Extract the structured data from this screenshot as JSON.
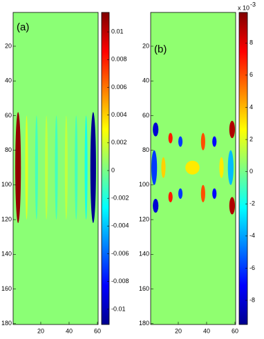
{
  "chart_data": [
    {
      "type": "heatmap",
      "label": "(a)",
      "y_reversed": true,
      "xlim": [
        0.5,
        60.5
      ],
      "ylim": [
        0.5,
        180.5
      ],
      "xticks": [
        20,
        40,
        60
      ],
      "yticks": [
        20,
        40,
        60,
        80,
        100,
        120,
        140,
        160,
        180
      ],
      "clim": [
        -0.0111,
        0.0114
      ],
      "cticks": [
        0.01,
        0.008,
        0.006,
        0.004,
        0.002,
        0,
        -0.002,
        -0.004,
        -0.006,
        -0.008,
        -0.01
      ],
      "colormap": [
        "#00008f",
        "#0000ff",
        "#0080ff",
        "#00ffff",
        "#80ff80",
        "#ffff00",
        "#ff8000",
        "#ff0000",
        "#800000"
      ],
      "background_value": 0.0004,
      "regions": [
        {
          "x": [
            2,
            6
          ],
          "y": [
            58,
            122
          ],
          "value": 0.011
        },
        {
          "x": [
            55,
            59
          ],
          "y": [
            58,
            122
          ],
          "value": -0.011
        },
        {
          "x": [
            9,
            11
          ],
          "y": [
            60,
            120
          ],
          "value": 0.0022
        },
        {
          "x": [
            16,
            18
          ],
          "y": [
            60,
            120
          ],
          "value": -0.0012
        },
        {
          "x": [
            23,
            25
          ],
          "y": [
            60,
            120
          ],
          "value": 0.0016
        },
        {
          "x": [
            30,
            32
          ],
          "y": [
            60,
            120
          ],
          "value": -0.0012
        },
        {
          "x": [
            37,
            39
          ],
          "y": [
            60,
            120
          ],
          "value": 0.0016
        },
        {
          "x": [
            44,
            46
          ],
          "y": [
            60,
            120
          ],
          "value": -0.0012
        },
        {
          "x": [
            51,
            53
          ],
          "y": [
            60,
            120
          ],
          "value": -0.0022
        }
      ]
    },
    {
      "type": "heatmap",
      "label": "(b)",
      "y_reversed": true,
      "xlim": [
        0.5,
        60.5
      ],
      "ylim": [
        0.5,
        180.5
      ],
      "xticks": [
        20,
        40,
        60
      ],
      "yticks": [
        20,
        40,
        60,
        80,
        100,
        120,
        140,
        160,
        180
      ],
      "clim": [
        -9.5,
        9.9
      ],
      "cticks": [
        8,
        6,
        4,
        2,
        0,
        -2,
        -4,
        -6,
        -8
      ],
      "colorbar_exponent_base": "x 10",
      "colorbar_exponent": "-3",
      "colormap": [
        "#00008f",
        "#0000ff",
        "#0080ff",
        "#00ffff",
        "#80ff80",
        "#ffff00",
        "#ff8000",
        "#ff0000",
        "#800000"
      ],
      "background_value": 0.5,
      "regions": [
        {
          "x": [
            56,
            60
          ],
          "y": [
            63,
            73
          ],
          "value": 9
        },
        {
          "x": [
            56,
            60
          ],
          "y": [
            107,
            117
          ],
          "value": 9
        },
        {
          "x": [
            2,
            6
          ],
          "y": [
            64,
            72
          ],
          "value": -8
        },
        {
          "x": [
            2,
            6
          ],
          "y": [
            108,
            116
          ],
          "value": -8
        },
        {
          "x": [
            1,
            5
          ],
          "y": [
            80,
            100
          ],
          "value": -6
        },
        {
          "x": [
            55,
            59
          ],
          "y": [
            80,
            100
          ],
          "value": -3.5
        },
        {
          "x": [
            13,
            16
          ],
          "y": [
            70,
            76
          ],
          "value": 7
        },
        {
          "x": [
            13,
            16
          ],
          "y": [
            104,
            110
          ],
          "value": 7
        },
        {
          "x": [
            20,
            23
          ],
          "y": [
            72,
            78
          ],
          "value": -6
        },
        {
          "x": [
            20,
            23
          ],
          "y": [
            102,
            108
          ],
          "value": -6
        },
        {
          "x": [
            36,
            39
          ],
          "y": [
            70,
            80
          ],
          "value": 6
        },
        {
          "x": [
            36,
            39
          ],
          "y": [
            100,
            110
          ],
          "value": 6
        },
        {
          "x": [
            44,
            47
          ],
          "y": [
            72,
            78
          ],
          "value": -7
        },
        {
          "x": [
            44,
            47
          ],
          "y": [
            102,
            108
          ],
          "value": -7
        },
        {
          "x": [
            25,
            35
          ],
          "y": [
            86,
            94
          ],
          "value": 3
        },
        {
          "x": [
            8,
            11
          ],
          "y": [
            84,
            96
          ],
          "value": 3.5
        },
        {
          "x": [
            49,
            52
          ],
          "y": [
            84,
            96
          ],
          "value": 3
        }
      ]
    }
  ]
}
